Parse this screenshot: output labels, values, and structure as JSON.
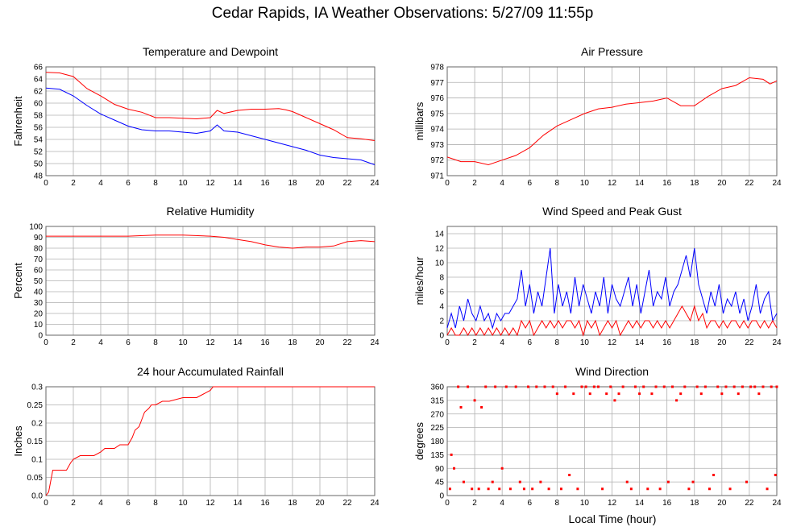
{
  "title": "Cedar Rapids, IA Weather Observations: 5/27/09 11:55p",
  "x_axis_label": "Local Time (hour)",
  "colors": {
    "red": "#ff0000",
    "blue": "#0000ff",
    "grid": "#b0b0b0",
    "frame": "#666666"
  },
  "chart_data": [
    {
      "id": "temp",
      "type": "line",
      "title": "Temperature and Dewpoint",
      "ylabel": "Fahrenheit",
      "xlim": [
        0,
        24
      ],
      "ylim": [
        48,
        66
      ],
      "xticks": [
        0,
        2,
        4,
        6,
        8,
        10,
        12,
        14,
        16,
        18,
        20,
        22,
        24
      ],
      "yticks": [
        48,
        50,
        52,
        54,
        56,
        58,
        60,
        62,
        64,
        66
      ],
      "grid": true,
      "series": [
        {
          "color": "#ff0000",
          "x": [
            0,
            1,
            2,
            3,
            4,
            5,
            6,
            7,
            8,
            9,
            10,
            11,
            12,
            12.5,
            13,
            14,
            15,
            16,
            17,
            17.5,
            18,
            19,
            20,
            21,
            22,
            23,
            24
          ],
          "y": [
            65.1,
            65,
            64.4,
            62.4,
            61.2,
            59.8,
            59,
            58.5,
            57.6,
            57.6,
            57.5,
            57.4,
            57.6,
            58.8,
            58.3,
            58.8,
            59,
            59,
            59.1,
            58.9,
            58.6,
            57.6,
            56.6,
            55.6,
            54.3,
            54.1,
            53.8
          ]
        },
        {
          "color": "#0000ff",
          "x": [
            0,
            1,
            2,
            3,
            4,
            5,
            6,
            7,
            8,
            9,
            10,
            11,
            12,
            12.5,
            13,
            14,
            15,
            16,
            17,
            18,
            19,
            20,
            21,
            22,
            23,
            24
          ],
          "y": [
            62.5,
            62.3,
            61.2,
            59.6,
            58.2,
            57.2,
            56.2,
            55.6,
            55.4,
            55.4,
            55.2,
            55,
            55.4,
            56.4,
            55.4,
            55.2,
            54.6,
            54,
            53.4,
            52.8,
            52.2,
            51.4,
            51,
            50.8,
            50.6,
            49.8
          ]
        }
      ]
    },
    {
      "id": "pressure",
      "type": "line",
      "title": "Air Pressure",
      "ylabel": "millibars",
      "xlim": [
        0,
        24
      ],
      "ylim": [
        971,
        978
      ],
      "xticks": [
        0,
        2,
        4,
        6,
        8,
        10,
        12,
        14,
        16,
        18,
        20,
        22,
        24
      ],
      "yticks": [
        971,
        972,
        973,
        974,
        975,
        976,
        977,
        978
      ],
      "grid": true,
      "series": [
        {
          "color": "#ff0000",
          "x": [
            0,
            1,
            2,
            3,
            4,
            5,
            6,
            7,
            8,
            9,
            10,
            11,
            12,
            13,
            14,
            15,
            16,
            17,
            18,
            19,
            20,
            21,
            22,
            23,
            23.5,
            24
          ],
          "y": [
            972.2,
            971.9,
            971.9,
            971.7,
            972,
            972.3,
            972.8,
            973.6,
            974.2,
            974.6,
            975,
            975.3,
            975.4,
            975.6,
            975.7,
            975.8,
            976,
            975.5,
            975.5,
            976.1,
            976.6,
            976.8,
            977.3,
            977.2,
            976.9,
            977.1
          ]
        }
      ]
    },
    {
      "id": "humidity",
      "type": "line",
      "title": "Relative Humidity",
      "ylabel": "Percent",
      "xlim": [
        0,
        24
      ],
      "ylim": [
        0,
        100
      ],
      "xticks": [
        0,
        2,
        4,
        6,
        8,
        10,
        12,
        14,
        16,
        18,
        20,
        22,
        24
      ],
      "yticks": [
        0,
        10,
        20,
        30,
        40,
        50,
        60,
        70,
        80,
        90,
        100
      ],
      "grid": true,
      "series": [
        {
          "color": "#ff0000",
          "x": [
            0,
            2,
            4,
            6,
            8,
            10,
            12,
            13,
            14,
            15,
            16,
            17,
            18,
            19,
            20,
            21,
            22,
            23,
            24
          ],
          "y": [
            91,
            91,
            91,
            91,
            92,
            92,
            91,
            90,
            88,
            86,
            83,
            81,
            80,
            81,
            81,
            82,
            86,
            87,
            86
          ]
        }
      ]
    },
    {
      "id": "wind",
      "type": "line",
      "title": "Wind Speed and Peak Gust",
      "ylabel": "miles/hour",
      "xlim": [
        0,
        24
      ],
      "ylim": [
        0,
        15
      ],
      "xticks": [
        0,
        2,
        4,
        6,
        8,
        10,
        12,
        14,
        16,
        18,
        20,
        22,
        24
      ],
      "yticks": [
        0,
        2,
        4,
        6,
        8,
        10,
        12,
        14
      ],
      "grid": true,
      "series": [
        {
          "color": "#0000ff",
          "x": [
            0,
            0.3,
            0.6,
            0.9,
            1.2,
            1.5,
            1.8,
            2.1,
            2.4,
            2.7,
            3,
            3.3,
            3.6,
            3.9,
            4.2,
            4.5,
            4.8,
            5.1,
            5.4,
            5.7,
            6,
            6.3,
            6.6,
            6.9,
            7.2,
            7.5,
            7.8,
            8.1,
            8.4,
            8.7,
            9,
            9.3,
            9.6,
            9.9,
            10.2,
            10.5,
            10.8,
            11.1,
            11.4,
            11.7,
            12,
            12.3,
            12.6,
            12.9,
            13.2,
            13.5,
            13.8,
            14.1,
            14.4,
            14.7,
            15,
            15.3,
            15.6,
            15.9,
            16.2,
            16.5,
            16.8,
            17.1,
            17.4,
            17.7,
            18,
            18.3,
            18.6,
            18.9,
            19.2,
            19.5,
            19.8,
            20.1,
            20.4,
            20.7,
            21,
            21.3,
            21.6,
            21.9,
            22.2,
            22.5,
            22.8,
            23.1,
            23.4,
            23.7,
            24
          ],
          "y": [
            1,
            3,
            1,
            4,
            2,
            5,
            3,
            2,
            4,
            2,
            3,
            1,
            3,
            2,
            3,
            3,
            4,
            5,
            9,
            4,
            7,
            3,
            6,
            4,
            8,
            12,
            3,
            7,
            4,
            6,
            3,
            8,
            4,
            7,
            5,
            3,
            6,
            4,
            8,
            3,
            7,
            5,
            4,
            6,
            8,
            4,
            7,
            3,
            6,
            9,
            4,
            6,
            5,
            8,
            4,
            6,
            7,
            9,
            11,
            8,
            12,
            7,
            5,
            3,
            6,
            4,
            7,
            3,
            5,
            4,
            6,
            3,
            5,
            2,
            4,
            7,
            3,
            5,
            6,
            2,
            3
          ]
        },
        {
          "color": "#ff0000",
          "x": [
            0,
            0.3,
            0.6,
            0.9,
            1.2,
            1.5,
            1.8,
            2.1,
            2.4,
            2.7,
            3,
            3.3,
            3.6,
            3.9,
            4.2,
            4.5,
            4.8,
            5.1,
            5.4,
            5.7,
            6,
            6.3,
            6.6,
            6.9,
            7.2,
            7.5,
            7.8,
            8.1,
            8.4,
            8.7,
            9,
            9.3,
            9.6,
            9.9,
            10.2,
            10.5,
            10.8,
            11.1,
            11.4,
            11.7,
            12,
            12.3,
            12.6,
            12.9,
            13.2,
            13.5,
            13.8,
            14.1,
            14.4,
            14.7,
            15,
            15.3,
            15.6,
            15.9,
            16.2,
            16.5,
            16.8,
            17.1,
            17.4,
            17.7,
            18,
            18.3,
            18.6,
            18.9,
            19.2,
            19.5,
            19.8,
            20.1,
            20.4,
            20.7,
            21,
            21.3,
            21.6,
            21.9,
            22.2,
            22.5,
            22.8,
            23.1,
            23.4,
            23.7,
            24
          ],
          "y": [
            0,
            1,
            0,
            0,
            1,
            0,
            1,
            0,
            1,
            0,
            1,
            0,
            1,
            0,
            1,
            0,
            1,
            0,
            2,
            1,
            2,
            0,
            1,
            2,
            1,
            2,
            1,
            2,
            1,
            2,
            2,
            1,
            2,
            0,
            2,
            1,
            2,
            0,
            1,
            2,
            1,
            2,
            0,
            1,
            2,
            1,
            2,
            1,
            2,
            2,
            1,
            2,
            1,
            2,
            1,
            2,
            3,
            4,
            3,
            2,
            4,
            2,
            3,
            1,
            2,
            2,
            1,
            2,
            1,
            2,
            2,
            1,
            2,
            1,
            2,
            2,
            1,
            2,
            1,
            2,
            1
          ]
        }
      ]
    },
    {
      "id": "rain",
      "type": "line",
      "title": "24 hour Accumulated Rainfall",
      "ylabel": "Inches",
      "xlim": [
        0,
        24
      ],
      "ylim": [
        0,
        0.3
      ],
      "xticks": [
        0,
        2,
        4,
        6,
        8,
        10,
        12,
        14,
        16,
        18,
        20,
        22,
        24
      ],
      "yticks": [
        0,
        0.05,
        0.1,
        0.15,
        0.2,
        0.25,
        0.3
      ],
      "ytick_labels": [
        "0.0",
        "0.05",
        "0.1",
        "0.15",
        "0.2",
        "0.25",
        "0.3"
      ],
      "grid": true,
      "series": [
        {
          "color": "#ff0000",
          "x": [
            0,
            0.2,
            0.4,
            0.5,
            1.5,
            1.8,
            2,
            2.5,
            3.5,
            4,
            4.3,
            5,
            5.4,
            6,
            6.3,
            6.5,
            6.8,
            7,
            7.2,
            7.5,
            7.7,
            8,
            8.5,
            9,
            10,
            11,
            11.5,
            12,
            12.2,
            13,
            24
          ],
          "y": [
            0,
            0.01,
            0.05,
            0.07,
            0.07,
            0.09,
            0.1,
            0.11,
            0.11,
            0.12,
            0.13,
            0.13,
            0.14,
            0.14,
            0.16,
            0.18,
            0.19,
            0.21,
            0.23,
            0.24,
            0.25,
            0.25,
            0.26,
            0.26,
            0.27,
            0.27,
            0.28,
            0.29,
            0.3,
            0.3,
            0.3
          ]
        }
      ]
    },
    {
      "id": "direction",
      "type": "scatter",
      "title": "Wind Direction",
      "ylabel": "degrees",
      "xlim": [
        0,
        24
      ],
      "ylim": [
        0,
        360
      ],
      "xticks": [
        0,
        2,
        4,
        6,
        8,
        10,
        12,
        14,
        16,
        18,
        20,
        22,
        24
      ],
      "yticks": [
        0,
        45,
        90,
        135,
        180,
        225,
        270,
        315,
        360
      ],
      "grid": true,
      "series": [
        {
          "color": "#ff0000",
          "x": [
            0.2,
            0.3,
            0.5,
            0.8,
            1,
            1.2,
            1.5,
            1.8,
            2,
            2.3,
            2.5,
            2.8,
            3,
            3.3,
            3.5,
            3.8,
            4,
            4.3,
            4.6,
            5,
            5.3,
            5.6,
            5.9,
            6.2,
            6.5,
            6.8,
            7.1,
            7.4,
            7.7,
            8,
            8.3,
            8.6,
            8.9,
            9.2,
            9.5,
            9.8,
            10.1,
            10.4,
            10.7,
            11,
            11.3,
            11.6,
            11.9,
            12.2,
            12.5,
            12.8,
            13.1,
            13.4,
            13.7,
            14,
            14.3,
            14.6,
            14.9,
            15.2,
            15.5,
            15.8,
            16.1,
            16.4,
            16.7,
            17,
            17.3,
            17.6,
            17.9,
            18.2,
            18.5,
            18.8,
            19.1,
            19.4,
            19.7,
            20,
            20.3,
            20.6,
            20.9,
            21.2,
            21.5,
            21.8,
            22.1,
            22.4,
            22.7,
            23,
            23.3,
            23.6,
            23.9,
            24
          ],
          "y": [
            22,
            135,
            90,
            360,
            292,
            45,
            360,
            22,
            315,
            22,
            292,
            360,
            22,
            45,
            360,
            22,
            90,
            360,
            22,
            360,
            45,
            22,
            360,
            22,
            360,
            45,
            360,
            22,
            360,
            337,
            22,
            360,
            68,
            337,
            22,
            360,
            360,
            337,
            360,
            360,
            22,
            337,
            360,
            315,
            337,
            360,
            45,
            22,
            360,
            337,
            360,
            22,
            337,
            360,
            22,
            360,
            45,
            360,
            315,
            337,
            360,
            22,
            45,
            360,
            337,
            360,
            22,
            68,
            360,
            337,
            360,
            22,
            360,
            337,
            360,
            45,
            360,
            360,
            337,
            360,
            22,
            360,
            68,
            360
          ]
        }
      ]
    }
  ]
}
